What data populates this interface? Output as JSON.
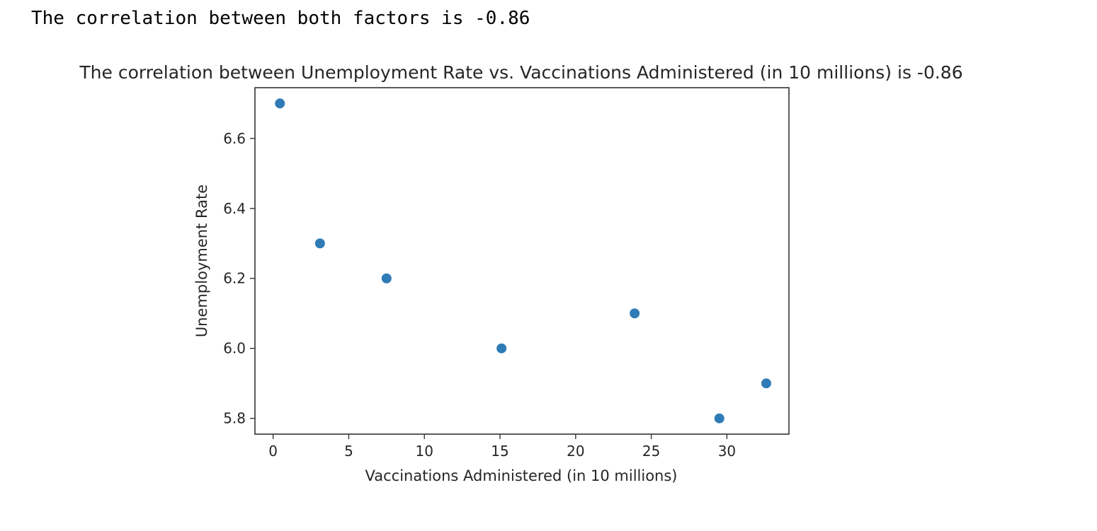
{
  "output": {
    "text": "The correlation between both factors is -0.86"
  },
  "chart_data": {
    "type": "scatter",
    "title": "The correlation between Unemployment Rate vs. Vaccinations Administered (in 10 millions) is -0.86",
    "xlabel": "Vaccinations Administered (in 10 millions)",
    "ylabel": "Unemployment Rate",
    "x": [
      0.45,
      3.1,
      7.5,
      15.1,
      23.9,
      29.5,
      32.6
    ],
    "y": [
      6.7,
      6.3,
      6.2,
      6.0,
      6.1,
      5.8,
      5.9
    ],
    "xlim": [
      -1.2,
      34.1
    ],
    "ylim": [
      5.755,
      6.745
    ],
    "xticks": [
      0,
      5,
      10,
      15,
      20,
      25,
      30
    ],
    "yticks": [
      5.8,
      6.0,
      6.2,
      6.4,
      6.6
    ],
    "xtick_labels": [
      "0",
      "5",
      "10",
      "15",
      "20",
      "25",
      "30"
    ],
    "ytick_labels": [
      "5.8",
      "6.0",
      "6.2",
      "6.4",
      "6.6"
    ],
    "marker_color": "#2f7bb6",
    "grid": false,
    "legend": "none"
  }
}
